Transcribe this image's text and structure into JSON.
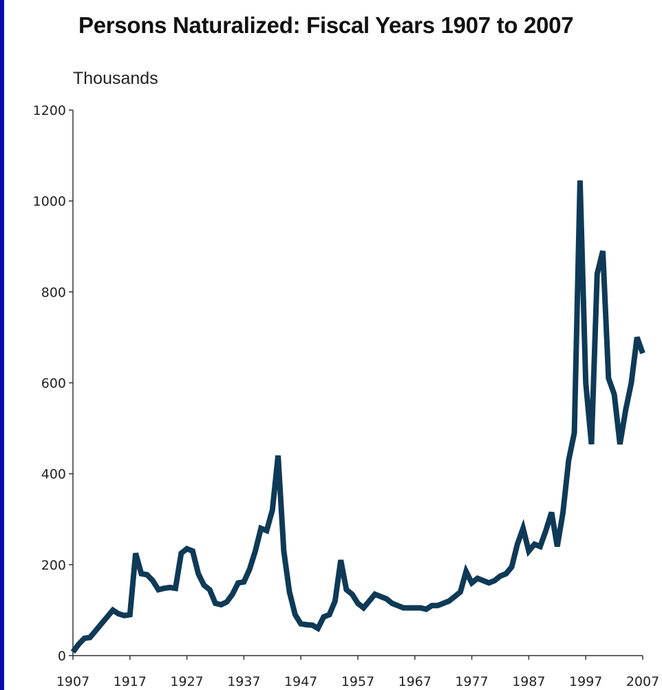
{
  "chart_data": {
    "type": "line",
    "title": "Persons Naturalized: Fiscal Years 1907 to 2007",
    "ylabel": "Thousands",
    "xlabel": "",
    "xlim": [
      1907,
      2007
    ],
    "ylim": [
      0,
      1200
    ],
    "x_ticks": [
      "1907",
      "1917",
      "1927",
      "1937",
      "1947",
      "1957",
      "1967",
      "1977",
      "1987",
      "1997",
      "2007"
    ],
    "y_ticks": [
      "0",
      "200",
      "400",
      "600",
      "800",
      "1000",
      "1200"
    ],
    "grid": false,
    "line_color": "#0f3a57",
    "series": [
      {
        "x": [
          1907,
          1908,
          1909,
          1910,
          1911,
          1912,
          1913,
          1914,
          1915,
          1916,
          1917,
          1918,
          1919,
          1920,
          1921,
          1922,
          1923,
          1924,
          1925,
          1926,
          1927,
          1928,
          1929,
          1930,
          1931,
          1932,
          1933,
          1934,
          1935,
          1936,
          1937,
          1938,
          1939,
          1940,
          1941,
          1942,
          1943,
          1944,
          1945,
          1946,
          1947,
          1948,
          1949,
          1950,
          1951,
          1952,
          1953,
          1954,
          1955,
          1956,
          1957,
          1958,
          1959,
          1960,
          1961,
          1962,
          1963,
          1964,
          1965,
          1966,
          1967,
          1968,
          1969,
          1970,
          1971,
          1972,
          1973,
          1974,
          1975,
          1976,
          1977,
          1978,
          1979,
          1980,
          1981,
          1982,
          1983,
          1984,
          1985,
          1986,
          1987,
          1988,
          1989,
          1990,
          1991,
          1992,
          1993,
          1994,
          1995,
          1996,
          1997,
          1998,
          1999,
          2000,
          2001,
          2002,
          2003,
          2004,
          2005,
          2006,
          2007
        ],
        "values": [
          8,
          25,
          38,
          40,
          55,
          70,
          85,
          100,
          92,
          88,
          90,
          225,
          180,
          178,
          165,
          145,
          148,
          150,
          148,
          225,
          235,
          230,
          180,
          155,
          145,
          115,
          112,
          118,
          135,
          160,
          162,
          190,
          230,
          280,
          275,
          320,
          440,
          230,
          140,
          90,
          70,
          68,
          67,
          60,
          85,
          90,
          120,
          210,
          145,
          135,
          115,
          105,
          120,
          135,
          130,
          125,
          115,
          110,
          105,
          105,
          105,
          105,
          102,
          110,
          110,
          115,
          120,
          130,
          140,
          185,
          160,
          170,
          165,
          160,
          165,
          175,
          180,
          195,
          245,
          280,
          230,
          245,
          240,
          275,
          315,
          240,
          315,
          430,
          490,
          1045,
          600,
          465,
          840,
          890,
          610,
          575,
          465,
          540,
          600,
          700,
          665
        ]
      }
    ]
  }
}
